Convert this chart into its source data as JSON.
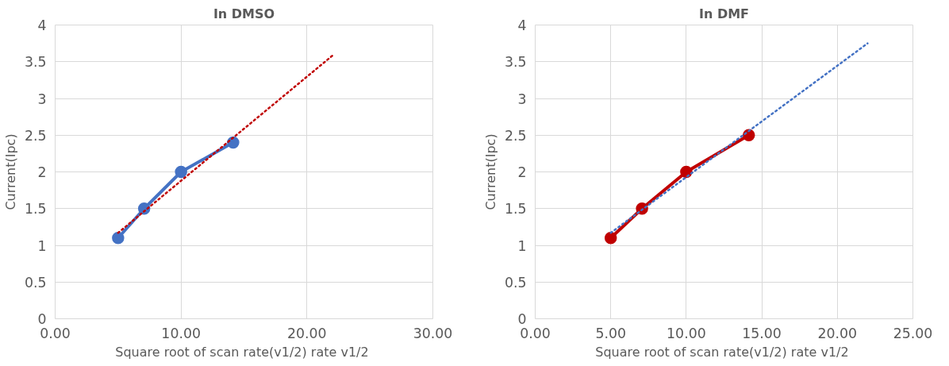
{
  "chart_data": [
    {
      "type": "line",
      "title": "In DMSO",
      "xlabel": "Square root of scan rate(v1/2)  rate v1/2",
      "ylabel": "Current(Ipc)",
      "xlim": [
        0,
        30
      ],
      "xticks": [
        {
          "value": 0,
          "label": "0.00"
        },
        {
          "value": 10,
          "label": "10.00"
        },
        {
          "value": 20,
          "label": "20.00"
        },
        {
          "value": 30,
          "label": "30.00"
        }
      ],
      "ylim": [
        0,
        4
      ],
      "yticks": [
        0,
        0.5,
        1,
        1.5,
        2,
        2.5,
        3,
        3.5,
        4
      ],
      "grid": true,
      "series": [
        {
          "x": [
            5,
            7.07,
            10,
            14.14
          ],
          "values": [
            1.1,
            1.5,
            2.0,
            2.4
          ],
          "color": "#4472c4",
          "marker": "circle",
          "line_style": "solid"
        },
        {
          "x": [
            5,
            22
          ],
          "values": [
            1.17,
            3.58
          ],
          "color": "#c00000",
          "marker": "none",
          "line_style": "dotted"
        }
      ]
    },
    {
      "type": "line",
      "title": "In DMF",
      "xlabel": "Square root of scan rate(v1/2)  rate v1/2",
      "ylabel": "Current(Ipc)",
      "xlim": [
        0,
        25
      ],
      "xticks": [
        {
          "value": 0,
          "label": "0.00"
        },
        {
          "value": 5,
          "label": "5.00"
        },
        {
          "value": 10,
          "label": "10.00"
        },
        {
          "value": 15,
          "label": "15.00"
        },
        {
          "value": 20,
          "label": "20.00"
        },
        {
          "value": 25,
          "label": "25.00"
        }
      ],
      "ylim": [
        0,
        4
      ],
      "yticks": [
        0,
        0.5,
        1,
        1.5,
        2,
        2.5,
        3,
        3.5,
        4
      ],
      "grid": true,
      "series": [
        {
          "x": [
            5,
            7.07,
            10,
            14.14
          ],
          "values": [
            1.1,
            1.5,
            2.0,
            2.5
          ],
          "color": "#c00000",
          "marker": "circle",
          "line_style": "solid"
        },
        {
          "x": [
            5,
            22
          ],
          "values": [
            1.17,
            3.75
          ],
          "color": "#4472c4",
          "marker": "none",
          "line_style": "dotted"
        }
      ]
    }
  ]
}
